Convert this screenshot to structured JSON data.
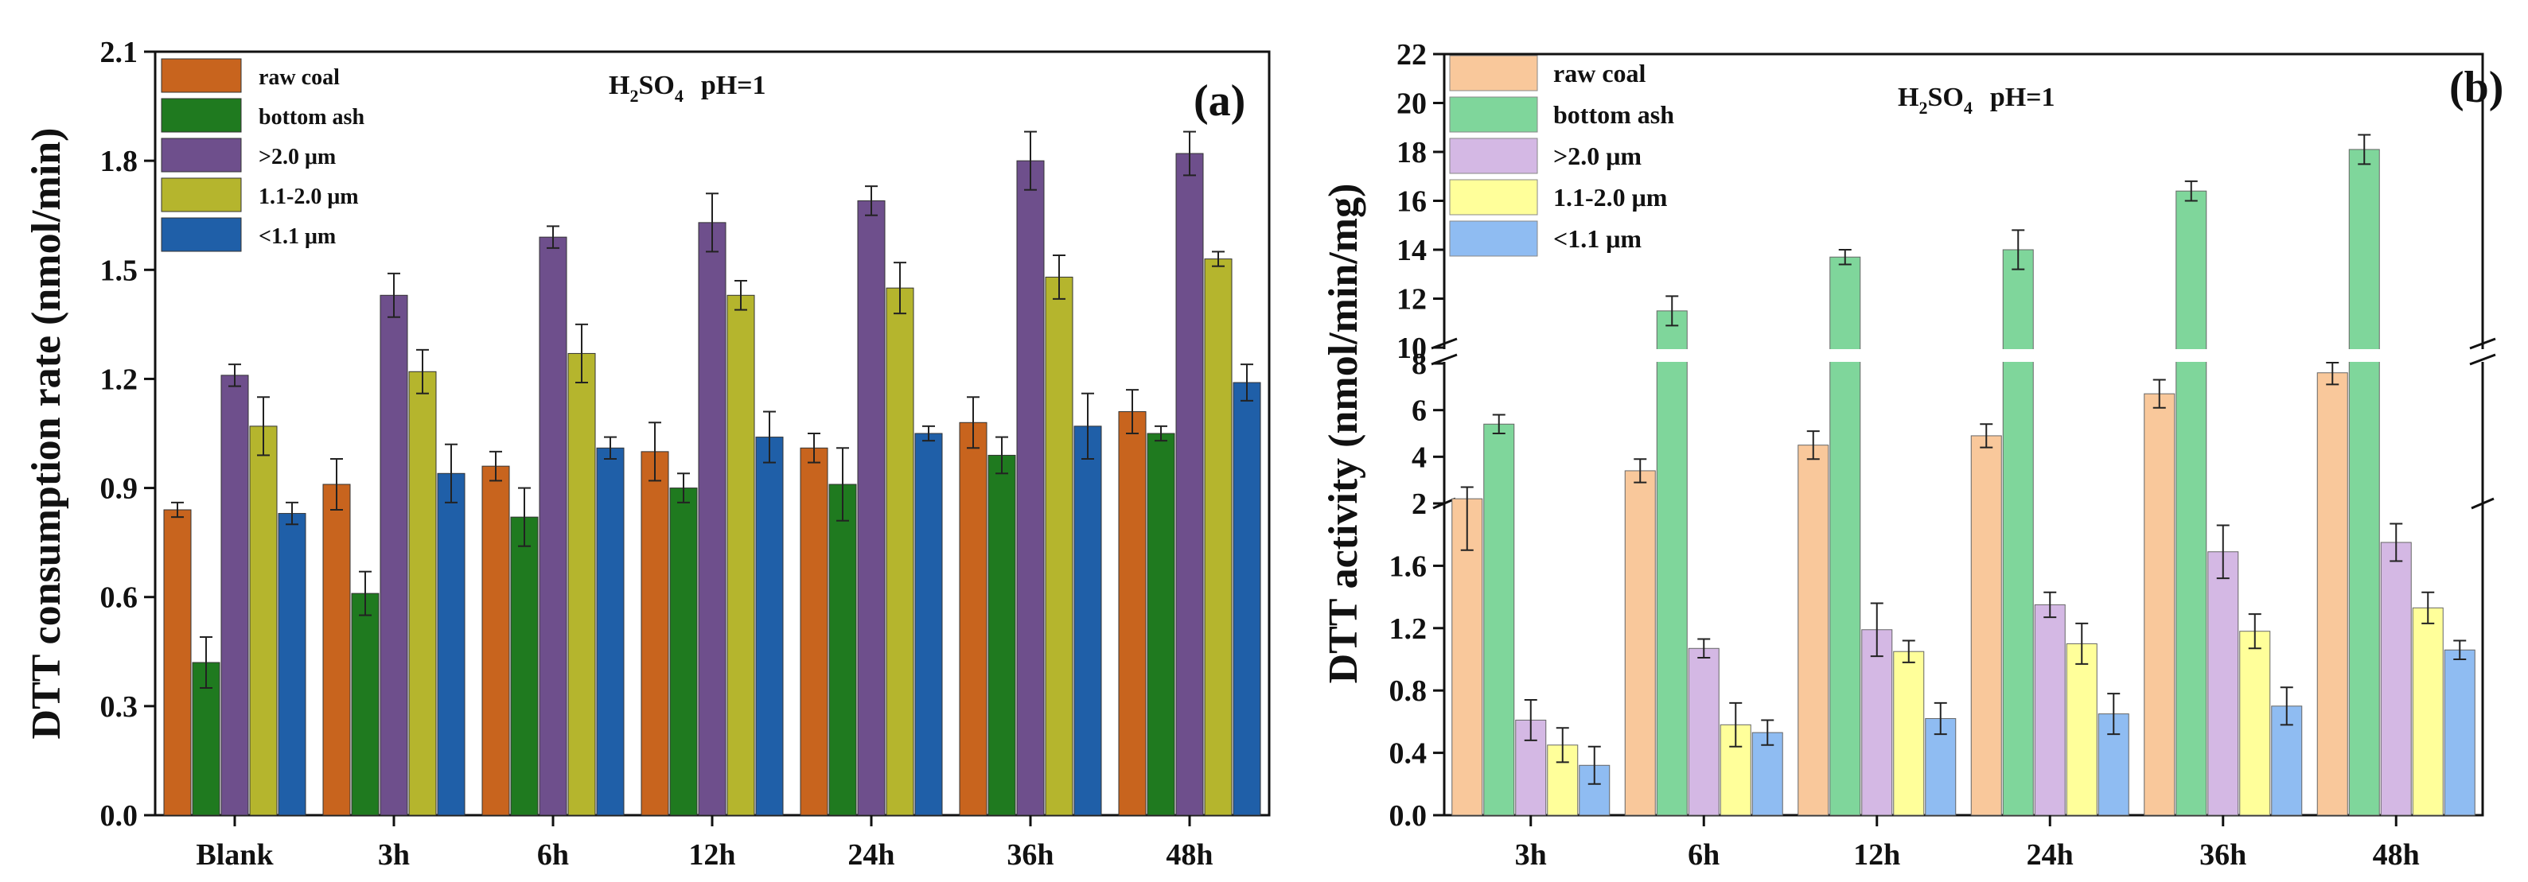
{
  "chart_data": [
    {
      "type": "bar",
      "panel_label": "(a)",
      "annotation": {
        "main": "H",
        "sub": "2",
        "mid": "SO",
        "sub2": "4",
        "tail": "pH=1"
      },
      "ylabel": "DTT consumption rate (nmol/min)",
      "xlabel": "",
      "ylim": [
        0,
        2.1
      ],
      "yticks": [
        "0.0",
        "0.3",
        "0.6",
        "0.9",
        "1.2",
        "1.5",
        "1.8",
        "2.1"
      ],
      "categories": [
        "Blank",
        "3h",
        "6h",
        "12h",
        "24h",
        "36h",
        "48h"
      ],
      "legend_position": "top-left",
      "series": [
        {
          "name": "raw coal",
          "color": "#c8641e",
          "values": [
            0.84,
            0.91,
            0.96,
            1.0,
            1.01,
            1.08,
            1.11
          ],
          "errors": [
            0.02,
            0.07,
            0.04,
            0.08,
            0.04,
            0.07,
            0.06
          ]
        },
        {
          "name": "bottom ash",
          "color": "#1f7a1f",
          "values": [
            0.42,
            0.61,
            0.82,
            0.9,
            0.91,
            0.99,
            1.05
          ],
          "errors": [
            0.07,
            0.06,
            0.08,
            0.04,
            0.1,
            0.05,
            0.02
          ]
        },
        {
          "name": ">2.0 μm",
          "color": "#6e4f8c",
          "values": [
            1.21,
            1.43,
            1.59,
            1.63,
            1.69,
            1.8,
            1.82
          ],
          "errors": [
            0.03,
            0.06,
            0.03,
            0.08,
            0.04,
            0.08,
            0.06
          ]
        },
        {
          "name": "1.1-2.0 μm",
          "color": "#b5b52d",
          "values": [
            1.07,
            1.22,
            1.27,
            1.43,
            1.45,
            1.48,
            1.53
          ],
          "errors": [
            0.08,
            0.06,
            0.08,
            0.04,
            0.07,
            0.06,
            0.02
          ]
        },
        {
          "name": "<1.1 μm",
          "color": "#1f5fa8",
          "values": [
            0.83,
            0.94,
            1.01,
            1.04,
            1.05,
            1.07,
            1.19
          ],
          "errors": [
            0.03,
            0.08,
            0.03,
            0.07,
            0.02,
            0.09,
            0.05
          ]
        }
      ]
    },
    {
      "type": "bar",
      "panel_label": "(b)",
      "annotation": {
        "main": "H",
        "sub": "2",
        "mid": "SO",
        "sub2": "4",
        "tail": "pH=1"
      },
      "ylabel": "DTT activity (nmol/min/mg)",
      "xlabel": "",
      "axis_break": "broken y-axis with three segments: 0-2 (lower), 2-8 (middle), 10-22 (upper)",
      "y_segments": [
        {
          "range": [
            0,
            2.0
          ],
          "ticks": [
            "0.0",
            "0.4",
            "0.8",
            "1.2",
            "1.6"
          ]
        },
        {
          "range": [
            2,
            8
          ],
          "ticks": [
            "2",
            "4",
            "6",
            "8"
          ]
        },
        {
          "range": [
            10,
            22
          ],
          "ticks": [
            "10",
            "12",
            "14",
            "16",
            "18",
            "20",
            "22"
          ]
        }
      ],
      "categories": [
        "3h",
        "6h",
        "12h",
        "24h",
        "36h",
        "48h"
      ],
      "legend_position": "top-left",
      "series": [
        {
          "name": "raw coal",
          "color": "#f9c89b",
          "values": [
            2.2,
            3.4,
            4.5,
            4.9,
            6.7,
            7.6
          ],
          "errors": [
            0.5,
            0.5,
            0.6,
            0.5,
            0.6,
            0.5
          ]
        },
        {
          "name": "bottom ash",
          "color": "#7fd69b",
          "values": [
            5.4,
            11.5,
            13.7,
            14.0,
            16.4,
            18.1
          ],
          "errors": [
            0.4,
            0.6,
            0.3,
            0.8,
            0.4,
            0.6
          ]
        },
        {
          "name": ">2.0 μm",
          "color": "#d4b8e4",
          "values": [
            0.61,
            1.07,
            1.19,
            1.35,
            1.69,
            1.75
          ],
          "errors": [
            0.13,
            0.06,
            0.17,
            0.08,
            0.17,
            0.12
          ]
        },
        {
          "name": "1.1-2.0 μm",
          "color": "#ffff9a",
          "values": [
            0.45,
            0.58,
            1.05,
            1.1,
            1.18,
            1.33
          ],
          "errors": [
            0.11,
            0.14,
            0.07,
            0.13,
            0.11,
            0.1
          ]
        },
        {
          "name": "<1.1 μm",
          "color": "#8fbcf2",
          "values": [
            0.32,
            0.53,
            0.62,
            0.65,
            0.7,
            1.06
          ],
          "errors": [
            0.12,
            0.08,
            0.1,
            0.13,
            0.12,
            0.06
          ]
        }
      ]
    }
  ]
}
